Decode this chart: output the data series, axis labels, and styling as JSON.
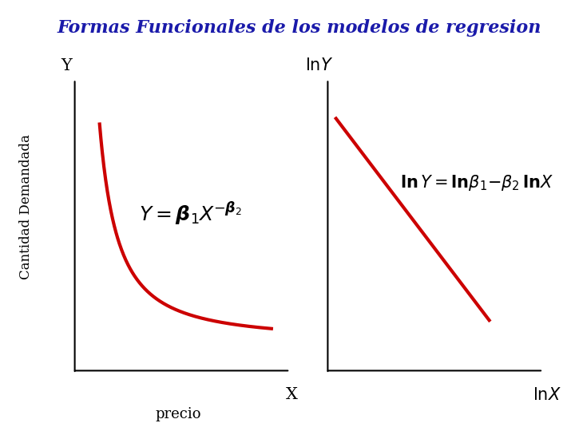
{
  "title": "Formas Funcionales de los modelos de regresion",
  "title_color": "#1a1aaa",
  "title_fontsize": 16,
  "ylabel": "Cantidad Demandada",
  "background_color": "#ffffff",
  "curve_color": "#cc0000",
  "curve_linewidth": 3.0,
  "left_formula": "Y = \\beta_1 X^{-\\beta_2}",
  "right_formula": "\\ln Y{=}\\ln\\beta_1{-}\\beta_2\\,\\ln X",
  "axis_label_fontsize": 15,
  "formula_fontsize": 18,
  "ylabel_fontsize": 12
}
